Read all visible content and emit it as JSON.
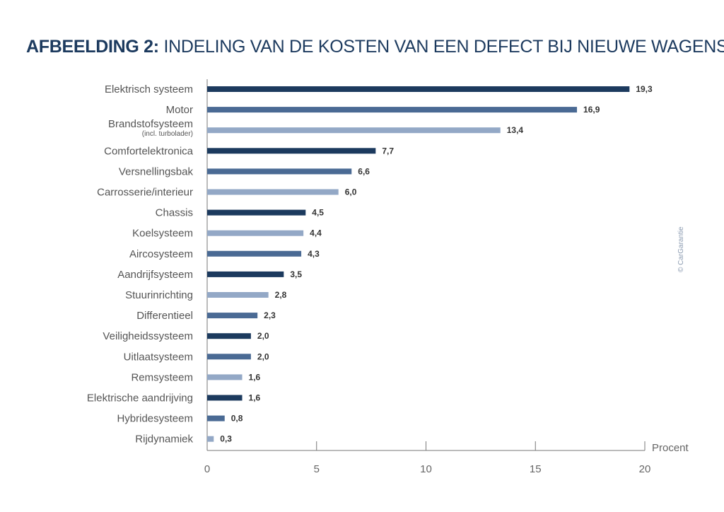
{
  "chart_data": {
    "type": "bar",
    "orientation": "horizontal",
    "title_bold": "AFBEELDING 2:",
    "title": "INDELING VAN DE KOSTEN VAN EEN DEFECT BIJ NIEUWE WAGENS",
    "xlabel": "Procent",
    "xlim": [
      0,
      20
    ],
    "xticks": [
      "0",
      "5",
      "10",
      "15",
      "20"
    ],
    "grid": false,
    "categories": [
      "Elektrisch systeem",
      "Motor",
      "Brandstofsysteem",
      "Comfortelektronica",
      "Versnellingsbak",
      "Carrosserie/interieur",
      "Chassis",
      "Koelsysteem",
      "Aircosysteem",
      "Aandrijfsysteem",
      "Stuurinrichting",
      "Differentieel",
      "Veiligheidssysteem",
      "Uitlaatsysteem",
      "Remsysteem",
      "Elektrische aandrijving",
      "Hybridesysteem",
      "Rijdynamiek"
    ],
    "category_sublabels": {
      "2": "(incl. turbolader)"
    },
    "values": [
      19.3,
      16.9,
      13.4,
      7.7,
      6.6,
      6.0,
      4.5,
      4.4,
      4.3,
      3.5,
      2.8,
      2.3,
      2.0,
      2.0,
      1.6,
      1.6,
      0.8,
      0.3
    ],
    "value_labels": [
      "19,3",
      "16,9",
      "13,4",
      "7,7",
      "6,6",
      "6,0",
      "4,5",
      "4,4",
      "4,3",
      "3,5",
      "2,8",
      "2,3",
      "2,0",
      "2,0",
      "1,6",
      "1,6",
      "0,8",
      "0,3"
    ],
    "bar_colors": [
      "#1c3a5e",
      "#4a6a94",
      "#93a8c6",
      "#1c3a5e",
      "#4a6a94",
      "#93a8c6",
      "#1c3a5e",
      "#93a8c6",
      "#4a6a94",
      "#1c3a5e",
      "#93a8c6",
      "#4a6a94",
      "#1c3a5e",
      "#4a6a94",
      "#93a8c6",
      "#1c3a5e",
      "#4a6a94",
      "#93a8c6"
    ],
    "colors": {
      "title": "#1c3a5e",
      "dark": "#1c3a5e",
      "medium": "#4a6a94",
      "light": "#93a8c6"
    }
  },
  "credit": "© CarGarantie"
}
